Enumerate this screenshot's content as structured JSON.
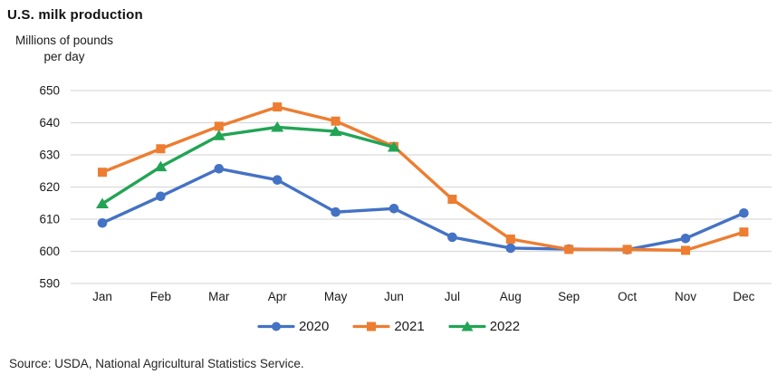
{
  "title": "U.S. milk production",
  "source_note": "Source: USDA, National Agricultural Statistics Service.",
  "colors": {
    "series_2020": "#4472C4",
    "series_2021": "#ED7D31",
    "series_2022": "#22A455",
    "gridline": "#D9D9D9",
    "text": "#1A1A1A"
  },
  "chart_data": {
    "type": "line",
    "title": "U.S. milk production",
    "ylabel": "Millions of pounds per day",
    "ylabel_lines": [
      "Millions of pounds",
      "per day"
    ],
    "xlabel": "",
    "categories": [
      "Jan",
      "Feb",
      "Mar",
      "Apr",
      "May",
      "Jun",
      "Jul",
      "Aug",
      "Sep",
      "Oct",
      "Nov",
      "Dec"
    ],
    "ylim": [
      590,
      650
    ],
    "yticks": [
      590,
      600,
      610,
      620,
      630,
      640,
      650
    ],
    "grid": "horizontal",
    "legend_position": "bottom",
    "series": [
      {
        "name": "2020",
        "marker": "circle",
        "color": "#4472C4",
        "values": [
          608.8,
          617.1,
          625.7,
          622.2,
          612.2,
          613.3,
          604.4,
          601.0,
          600.7,
          600.5,
          604.0,
          611.9
        ]
      },
      {
        "name": "2021",
        "marker": "square",
        "color": "#ED7D31",
        "values": [
          624.6,
          631.9,
          638.9,
          644.9,
          640.5,
          632.6,
          616.2,
          603.8,
          600.6,
          600.6,
          600.3,
          606.0
        ]
      },
      {
        "name": "2022",
        "marker": "triangle",
        "color": "#22A455",
        "values": [
          614.8,
          626.3,
          636.0,
          638.6,
          637.3,
          632.4
        ]
      }
    ]
  }
}
